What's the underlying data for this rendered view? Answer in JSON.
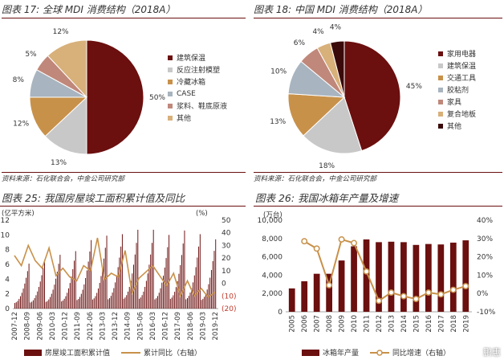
{
  "panel17": {
    "title": "图表 17: 全球 MDI 消费结构（2018A）",
    "source": "资料来源：石化联合会，中金公司研究部"
  },
  "panel18": {
    "title": "图表 18: 中国 MDI 消费结构（2018A）",
    "source": "资料来源：石化联合会，中金公司研究部"
  },
  "panel25": {
    "title": "图表 25: 我国房屋竣工面积累计值及同比",
    "left_unit": "(亿平方米)",
    "right_unit": "(%)",
    "legend_bar": "房屋竣工面积累计值",
    "legend_line": "累计同比（右轴）"
  },
  "panel26": {
    "title": "图表 26: 我国冰箱年产量及增速",
    "left_unit": "(万台)",
    "legend_bar": "冰箱年产量",
    "legend_line": "同比增速（右轴）"
  },
  "watermark": "鹏惠",
  "colors": {
    "maroon": "#6b0f0f",
    "grey": "#c8c8c8",
    "gold": "#c8914a",
    "steel": "#a8b4bf",
    "rose": "#c0887a",
    "tan": "#d8b07a",
    "dark": "#3a0a0a"
  },
  "chart_data": [
    {
      "type": "pie",
      "title": "全球 MDI 消费结构（2018A）",
      "labels": [
        "建筑保温",
        "反应注射模塑",
        "冷藏冰箱",
        "CASE",
        "浆料、鞋底原液",
        "其他"
      ],
      "values": [
        50,
        13,
        12,
        8,
        5,
        12
      ],
      "value_labels": [
        "50%",
        "13%",
        "12%",
        "8%",
        "5%",
        "12%"
      ],
      "colors": [
        "#6b0f0f",
        "#c8c8c8",
        "#c8914a",
        "#a8b4bf",
        "#c0887a",
        "#d8b07a"
      ]
    },
    {
      "type": "pie",
      "title": "中国 MDI 消费结构（2018A）",
      "labels": [
        "家用电器",
        "建筑保温",
        "交通工具",
        "胶粘剂",
        "家具",
        "复合地板",
        "其他"
      ],
      "values": [
        45,
        18,
        13,
        10,
        6,
        4,
        4
      ],
      "value_labels": [
        "45%",
        "18%",
        "13%",
        "10%",
        "6%",
        "4%",
        "4%"
      ],
      "colors": [
        "#6b0f0f",
        "#c8c8c8",
        "#c8914a",
        "#a8b4bf",
        "#c0887a",
        "#d8b07a",
        "#3a0a0a"
      ]
    },
    {
      "type": "bar",
      "title": "我国房屋竣工面积累计值及同比",
      "x_tick_labels": [
        "2007-12",
        "2008-09",
        "2009-06",
        "2010-03",
        "2010-12",
        "2011-09",
        "2012-06",
        "2013-03",
        "2013-12",
        "2014-09",
        "2015-06",
        "2016-03",
        "2016-12",
        "2017-09",
        "2018-06",
        "2019-03",
        "2019-12"
      ],
      "left_axis": {
        "label": "亿平方米",
        "range": [
          0,
          12
        ],
        "ticks": [
          "0",
          "2",
          "4",
          "6",
          "8",
          "10",
          "12"
        ]
      },
      "right_axis": {
        "label": "%",
        "range": [
          -20,
          50
        ],
        "ticks": [
          "(20)",
          "(10)",
          "0",
          "10",
          "20",
          "30",
          "40",
          "50"
        ]
      },
      "series": [
        {
          "name": "房屋竣工面积累计值",
          "kind": "bar",
          "year_end_values": [
            6.1,
            6.6,
            7.3,
            7.8,
            9.3,
            9.9,
            10.1,
            10.7,
            10.7,
            10.0,
            10.6,
            10.1,
            9.4
          ]
        },
        {
          "name": "累计同比（右轴）",
          "kind": "line",
          "path_values": [
            22,
            14,
            30,
            18,
            12,
            28,
            6,
            12,
            5,
            2,
            14,
            10,
            36,
            3,
            8,
            5,
            26,
            -8,
            4,
            9,
            14,
            6,
            -2,
            8,
            -10,
            2,
            -10,
            -4,
            -11,
            -7
          ]
        }
      ]
    },
    {
      "type": "bar",
      "title": "我国冰箱年产量及增速",
      "categories": [
        "2005",
        "2006",
        "2007",
        "2008",
        "2009",
        "2010",
        "2011",
        "2012",
        "2013",
        "2014",
        "2015",
        "2016",
        "2017",
        "2018",
        "2019"
      ],
      "left_axis": {
        "label": "万台",
        "range": [
          0,
          10000
        ],
        "ticks": [
          "0",
          "2,000",
          "4,000",
          "6,000",
          "8,000",
          "10,000"
        ]
      },
      "right_axis": {
        "label": "%",
        "range": [
          -10,
          40
        ],
        "ticks": [
          "-10%",
          "0%",
          "10%",
          "20%",
          "30%",
          "40%"
        ]
      },
      "series": [
        {
          "name": "冰箱年产量",
          "kind": "bar",
          "values": [
            2550,
            3330,
            4150,
            4150,
            5600,
            7150,
            7900,
            7600,
            7650,
            7600,
            7300,
            7400,
            7350,
            7550,
            7800
          ]
        },
        {
          "name": "同比增速（右轴）",
          "kind": "line",
          "values": [
            null,
            28.5,
            24.5,
            4.5,
            29.5,
            27.5,
            12,
            -4,
            0.5,
            -1.5,
            -3,
            0.5,
            -0.5,
            2,
            4
          ]
        }
      ]
    }
  ]
}
